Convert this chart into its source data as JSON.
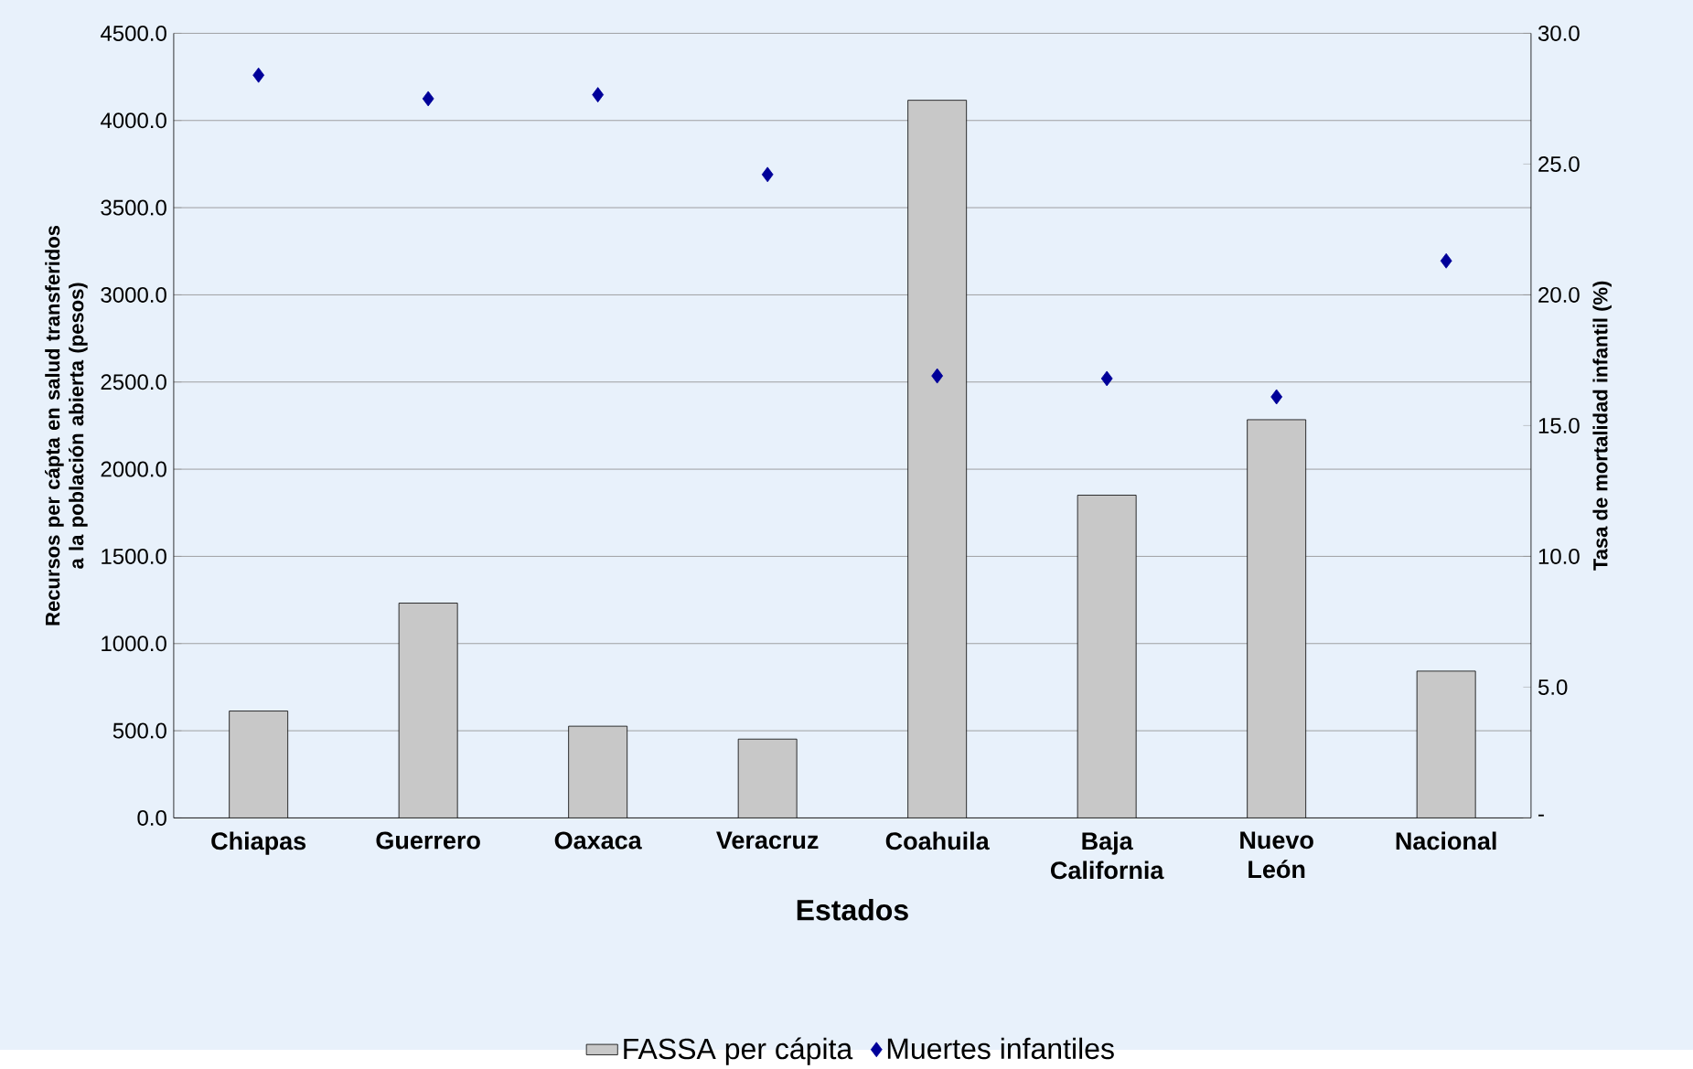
{
  "chart_data": {
    "type": "bar",
    "xlabel": "Estados",
    "ylabel": "Recursos per cápta en salud transferidos a la población abierta (pesos)",
    "y2label": "Tasa de mortalidad infantil (%)",
    "categories": [
      "Chiapas",
      "Guerrero",
      "Oaxaca",
      "Veracruz",
      "Coahuila",
      "Baja California",
      "Nuevo León",
      "Nacional"
    ],
    "series": [
      {
        "name": "FASSA per cápita",
        "color": "#c8c8c8",
        "values": [
          613,
          1232,
          526,
          452,
          4116,
          1851,
          2284,
          842
        ]
      },
      {
        "name": "Muertes infantiles",
        "type": "scatter",
        "axis": "y2",
        "marker": "diamond",
        "color": "#000099",
        "values": [
          28.4,
          27.5,
          27.65,
          24.6,
          16.9,
          16.8,
          16.1,
          21.3
        ]
      }
    ],
    "ylim": [
      0,
      4500
    ],
    "yticks": [
      {
        "value": 0,
        "label": "0.0"
      },
      {
        "value": 500,
        "label": "500.0"
      },
      {
        "value": 1000,
        "label": "1000.0"
      },
      {
        "value": 1500,
        "label": "1500.0"
      },
      {
        "value": 2000,
        "label": "2000.0"
      },
      {
        "value": 2500,
        "label": "2500.0"
      },
      {
        "value": 3000,
        "label": "3000.0"
      },
      {
        "value": 3500,
        "label": "3500.0"
      },
      {
        "value": 4000,
        "label": "4000.0"
      },
      {
        "value": 4500,
        "label": "4500.0"
      }
    ],
    "y2lim": [
      0,
      30
    ],
    "y2ticks": [
      {
        "value": 0,
        "label": "-"
      },
      {
        "value": 5,
        "label": "5.0"
      },
      {
        "value": 10,
        "label": "10.0"
      },
      {
        "value": 15,
        "label": "15.0"
      },
      {
        "value": 20,
        "label": "20.0"
      },
      {
        "value": 25,
        "label": "25.0"
      },
      {
        "value": 30,
        "label": "30.0"
      }
    ],
    "grid": "y",
    "legend": "bottom"
  }
}
